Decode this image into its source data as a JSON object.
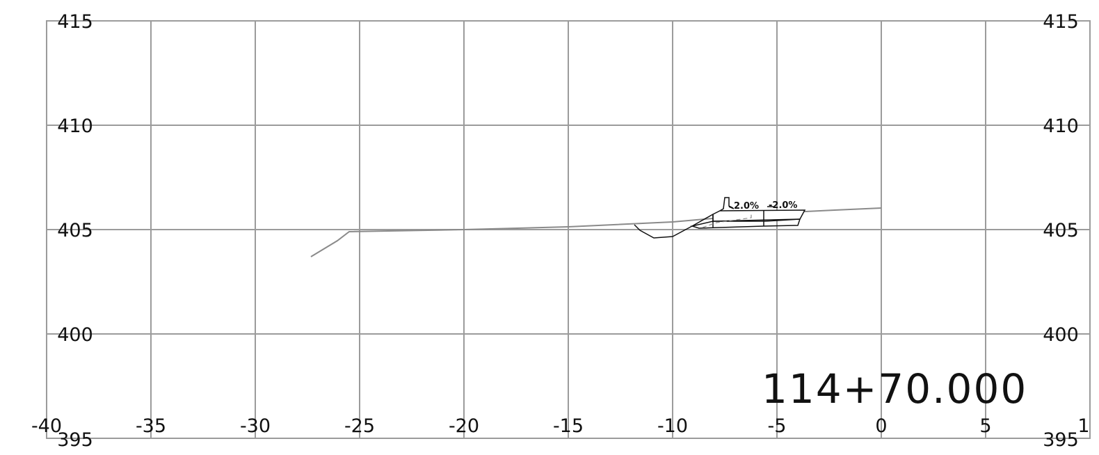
{
  "section": {
    "station_label": "114+70.000"
  },
  "axes": {
    "x_ticks": [
      "-40",
      "-35",
      "-30",
      "-25",
      "-20",
      "-15",
      "-10",
      "-5",
      "0",
      "5",
      "1"
    ],
    "y_ticks_left": [
      "415",
      "410",
      "405",
      "400",
      "395"
    ],
    "y_ticks_right": [
      "415",
      "410",
      "405",
      "400",
      "395"
    ]
  },
  "annotations": {
    "grade_left": "2.0%",
    "grade_right": "-2.0%"
  },
  "colors": {
    "grid": "#9b9b9b",
    "existing_ground": "#8a8a8a",
    "design_section": "#111111",
    "background": "#ffffff"
  }
}
